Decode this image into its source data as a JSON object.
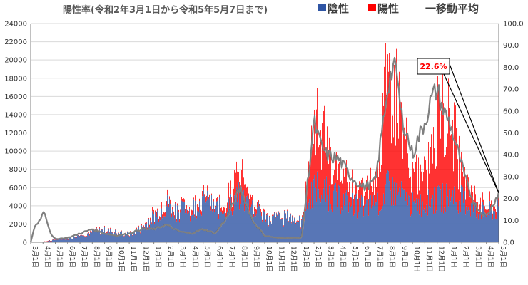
{
  "chart_data": {
    "type": "bar",
    "title": "陽性率(令和2年3月1日から令和5年5月7日まで)",
    "legend": {
      "position": "top-right",
      "items": [
        {
          "label": "陰性",
          "color": "#2f55a4",
          "kind": "bar"
        },
        {
          "label": "陽性",
          "color": "#ff0000",
          "kind": "bar"
        },
        {
          "label": "一移動平均",
          "color": "#7f7f7f",
          "kind": "line"
        }
      ]
    },
    "y_left": {
      "range": [
        0,
        24000
      ],
      "ticks": [
        "0",
        "2000",
        "4000",
        "6000",
        "8000",
        "10000",
        "12000",
        "14000",
        "16000",
        "18000",
        "20000",
        "22000",
        "24000"
      ]
    },
    "y_right": {
      "range": [
        0,
        100
      ],
      "ticks": [
        "0.0",
        "10.0",
        "20.0",
        "30.0",
        "40.0",
        "50.0",
        "60.0",
        "70.0",
        "80.0",
        "90.0",
        "100.0"
      ]
    },
    "x_ticks": [
      "3月1日",
      "4月1日",
      "5月1日",
      "6月1日",
      "7月1日",
      "8月1日",
      "9月1日",
      "10月1日",
      "11月1日",
      "12月1日",
      "1月1日",
      "2月1日",
      "3月1日",
      "4月1日",
      "5月1日",
      "6月1日",
      "7月1日",
      "8月1日",
      "9月1日",
      "10月1日",
      "11月1日",
      "12月1日",
      "1月1日",
      "2月1日",
      "3月1日",
      "4月1日",
      "5月1日",
      "6月1日",
      "7月1日",
      "8月1日",
      "9月1日",
      "10月1日",
      "11月1日",
      "12月1日",
      "1月1日",
      "2月1日",
      "3月1日",
      "4月1日",
      "5月1日"
    ],
    "annotation": {
      "text": "22.6%",
      "points_to": "last moving-average value",
      "value": 22.6
    },
    "series_profile": {
      "negative_tests_envelope": [
        [
          0,
          0
        ],
        [
          1,
          80
        ],
        [
          2,
          350
        ],
        [
          3,
          500
        ],
        [
          4,
          900
        ],
        [
          5,
          1300
        ],
        [
          6,
          1500
        ],
        [
          7,
          1200
        ],
        [
          8,
          1000
        ],
        [
          9,
          1800
        ],
        [
          10,
          3500
        ],
        [
          11,
          4800
        ],
        [
          12,
          4000
        ],
        [
          13,
          4200
        ],
        [
          14,
          5300
        ],
        [
          15,
          4300
        ],
        [
          16,
          4500
        ],
        [
          17,
          6000
        ],
        [
          18,
          4500
        ],
        [
          19,
          3200
        ],
        [
          20,
          3000
        ],
        [
          21,
          3100
        ],
        [
          22,
          2500
        ],
        [
          23,
          7500
        ],
        [
          24,
          6300
        ],
        [
          25,
          5500
        ],
        [
          26,
          5000
        ],
        [
          27,
          4500
        ],
        [
          28,
          4800
        ],
        [
          29,
          7000
        ],
        [
          30,
          6000
        ],
        [
          31,
          4800
        ],
        [
          32,
          5000
        ],
        [
          33,
          5500
        ],
        [
          34,
          6000
        ],
        [
          35,
          5500
        ],
        [
          36,
          4200
        ],
        [
          37,
          3900
        ],
        [
          38,
          4100
        ]
      ],
      "positive_tests_envelope": [
        [
          0,
          0
        ],
        [
          1,
          10
        ],
        [
          2,
          20
        ],
        [
          3,
          10
        ],
        [
          4,
          20
        ],
        [
          5,
          120
        ],
        [
          6,
          150
        ],
        [
          7,
          50
        ],
        [
          8,
          60
        ],
        [
          9,
          150
        ],
        [
          10,
          400
        ],
        [
          11,
          700
        ],
        [
          12,
          300
        ],
        [
          13,
          500
        ],
        [
          14,
          600
        ],
        [
          15,
          300
        ],
        [
          16,
          1300
        ],
        [
          17,
          3500
        ],
        [
          18,
          800
        ],
        [
          19,
          150
        ],
        [
          20,
          100
        ],
        [
          21,
          100
        ],
        [
          22,
          100
        ],
        [
          23,
          9000
        ],
        [
          24,
          6500
        ],
        [
          25,
          3000
        ],
        [
          26,
          2500
        ],
        [
          27,
          2000
        ],
        [
          28,
          3500
        ],
        [
          29,
          17000
        ],
        [
          30,
          10000
        ],
        [
          31,
          3500
        ],
        [
          32,
          5000
        ],
        [
          33,
          10000
        ],
        [
          34,
          12000
        ],
        [
          35,
          5000
        ],
        [
          36,
          1500
        ],
        [
          37,
          900
        ],
        [
          38,
          900
        ]
      ],
      "moving_average_rate_pct": [
        [
          0,
          0
        ],
        [
          0.3,
          7
        ],
        [
          0.6,
          9
        ],
        [
          0.9,
          12
        ],
        [
          1.1,
          15
        ],
        [
          1.4,
          8
        ],
        [
          1.7,
          3
        ],
        [
          2,
          1.5
        ],
        [
          3,
          2
        ],
        [
          4,
          4
        ],
        [
          5,
          6
        ],
        [
          6,
          4
        ],
        [
          7,
          3
        ],
        [
          8,
          4
        ],
        [
          9,
          6
        ],
        [
          10,
          6
        ],
        [
          11,
          8
        ],
        [
          12,
          5
        ],
        [
          13,
          4
        ],
        [
          14,
          6
        ],
        [
          15,
          4
        ],
        [
          16,
          12
        ],
        [
          17,
          25
        ],
        [
          18,
          10
        ],
        [
          19,
          3
        ],
        [
          20,
          2
        ],
        [
          21,
          2
        ],
        [
          22,
          2
        ],
        [
          23,
          55
        ],
        [
          23.5,
          45
        ],
        [
          24,
          40
        ],
        [
          25,
          38
        ],
        [
          26,
          30
        ],
        [
          27,
          25
        ],
        [
          28,
          28
        ],
        [
          29,
          72
        ],
        [
          29.4,
          80
        ],
        [
          29.8,
          75
        ],
        [
          30,
          60
        ],
        [
          30.5,
          50
        ],
        [
          31,
          40
        ],
        [
          31.5,
          48
        ],
        [
          32,
          55
        ],
        [
          32.5,
          65
        ],
        [
          33,
          70
        ],
        [
          33.5,
          60
        ],
        [
          34,
          55
        ],
        [
          34.5,
          45
        ],
        [
          35,
          35
        ],
        [
          35.5,
          25
        ],
        [
          36,
          18
        ],
        [
          36.5,
          14
        ],
        [
          37,
          12
        ],
        [
          37.5,
          17
        ],
        [
          38,
          22.6
        ]
      ]
    }
  }
}
